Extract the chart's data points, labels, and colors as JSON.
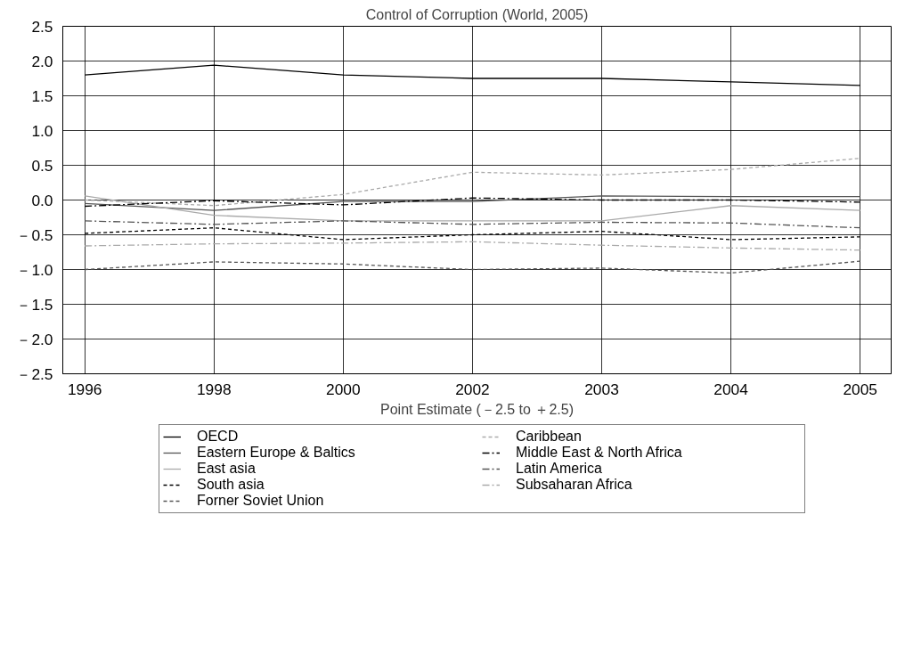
{
  "chart_data": {
    "type": "line",
    "title": "Control of Corruption (World, 2005)",
    "xlabel": "Point Estimate (－2.5 to ＋2.5)",
    "categories": [
      "1996",
      "1998",
      "2000",
      "2002",
      "2003",
      "2004",
      "2005"
    ],
    "ylim": [
      -2.5,
      2.5
    ],
    "yticks": [
      {
        "value": -2.5,
        "label": "－2.5"
      },
      {
        "value": -2.0,
        "label": "－2.0"
      },
      {
        "value": -1.5,
        "label": "－1.5"
      },
      {
        "value": -1.0,
        "label": "－1.0"
      },
      {
        "value": -0.5,
        "label": "－0.5"
      },
      {
        "value": 0,
        "label": "0.0"
      },
      {
        "value": 0.5,
        "label": "0.5"
      },
      {
        "value": 1.0,
        "label": "1.0"
      },
      {
        "value": 1.5,
        "label": "1.5"
      },
      {
        "value": 2.0,
        "label": "2.0"
      },
      {
        "value": 2.5,
        "label": "2.5"
      }
    ],
    "grid": true,
    "legend": "bottom",
    "marker": "none",
    "series": [
      {
        "name": "OECD",
        "color": "#000000",
        "line_style": "solid",
        "values": [
          1.8,
          1.94,
          1.8,
          1.75,
          1.75,
          1.7,
          1.65
        ]
      },
      {
        "name": "Eastern Europe & Baltics",
        "color": "#555555",
        "line_style": "solid",
        "values": [
          -0.05,
          -0.15,
          -0.02,
          -0.02,
          0.06,
          0.05,
          0.05
        ]
      },
      {
        "name": "East asia",
        "color": "#aaaaaa",
        "line_style": "solid",
        "values": [
          0.06,
          -0.22,
          -0.3,
          -0.3,
          -0.3,
          -0.08,
          -0.15
        ]
      },
      {
        "name": "South asia",
        "color": "#000000",
        "line_style": "dashed",
        "values": [
          -0.48,
          -0.4,
          -0.57,
          -0.5,
          -0.45,
          -0.57,
          -0.53
        ]
      },
      {
        "name": "Forner Soviet Union",
        "color": "#555555",
        "line_style": "dashed",
        "values": [
          -1.0,
          -0.89,
          -0.92,
          -1.0,
          -0.98,
          -1.05,
          -0.88
        ]
      },
      {
        "name": "Caribbean",
        "color": "#aaaaaa",
        "line_style": "dashed",
        "values": [
          0.0,
          -0.08,
          0.08,
          0.4,
          0.36,
          0.44,
          0.6
        ]
      },
      {
        "name": "Middle East & North Africa",
        "color": "#000000",
        "line_style": "dashdot",
        "values": [
          -0.09,
          -0.01,
          -0.07,
          0.03,
          0.0,
          0.0,
          -0.03
        ]
      },
      {
        "name": "Latin America",
        "color": "#555555",
        "line_style": "dashdot",
        "values": [
          -0.3,
          -0.35,
          -0.3,
          -0.35,
          -0.32,
          -0.33,
          -0.4
        ]
      },
      {
        "name": "Subsaharan Africa",
        "color": "#aaaaaa",
        "line_style": "dashdot",
        "values": [
          -0.66,
          -0.63,
          -0.62,
          -0.6,
          -0.65,
          -0.69,
          -0.72
        ]
      }
    ]
  }
}
